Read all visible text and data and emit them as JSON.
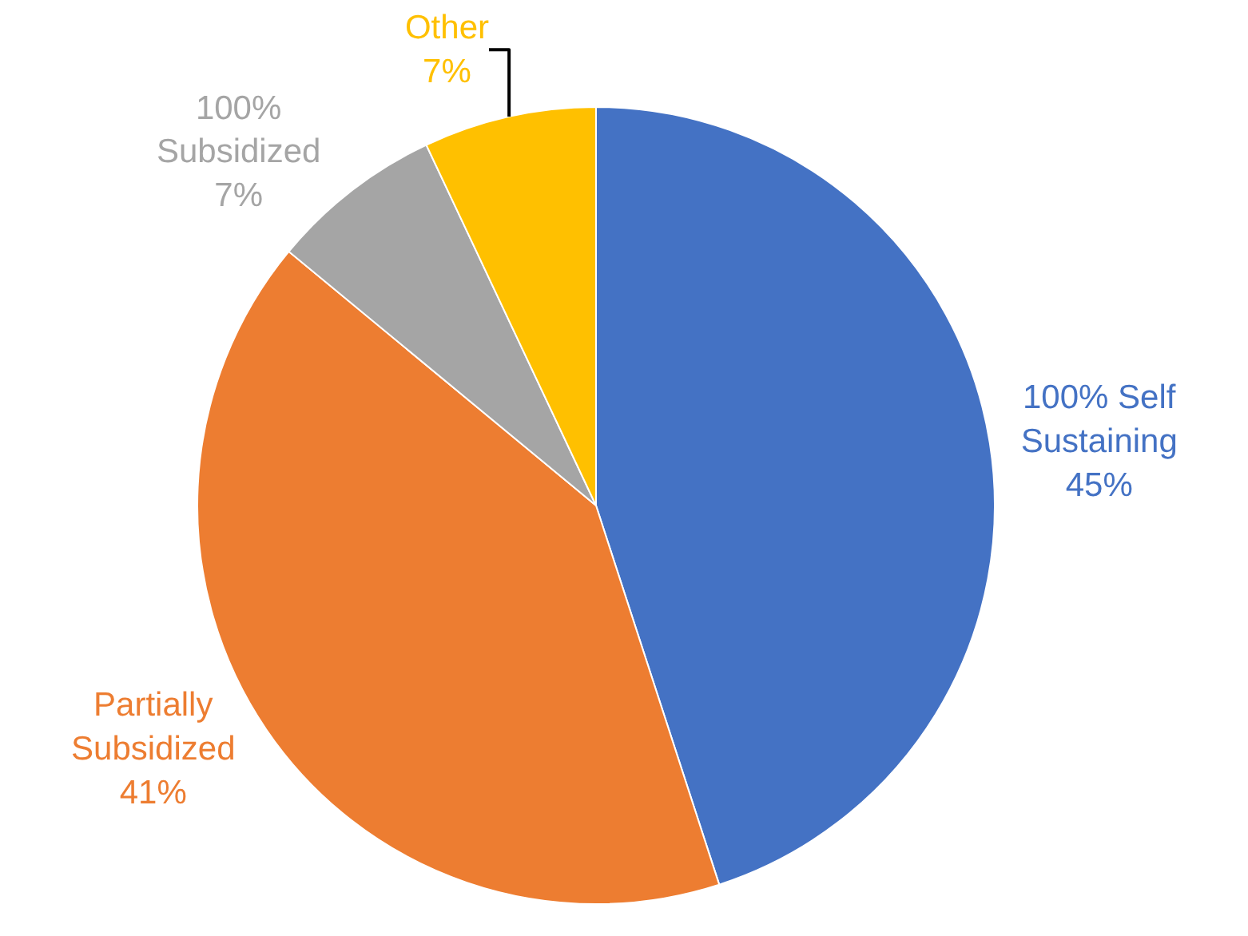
{
  "chart_data": {
    "type": "pie",
    "categories": [
      "100% Self Sustaining",
      "Partially Subsidized",
      "100% Subsidized",
      "Other"
    ],
    "values": [
      45,
      41,
      7,
      7
    ],
    "value_labels": [
      "45%",
      "41%",
      "7%",
      "7%"
    ],
    "colors": [
      "#4472c4",
      "#ed7d31",
      "#a5a5a5",
      "#ffc000"
    ],
    "legend": false
  }
}
